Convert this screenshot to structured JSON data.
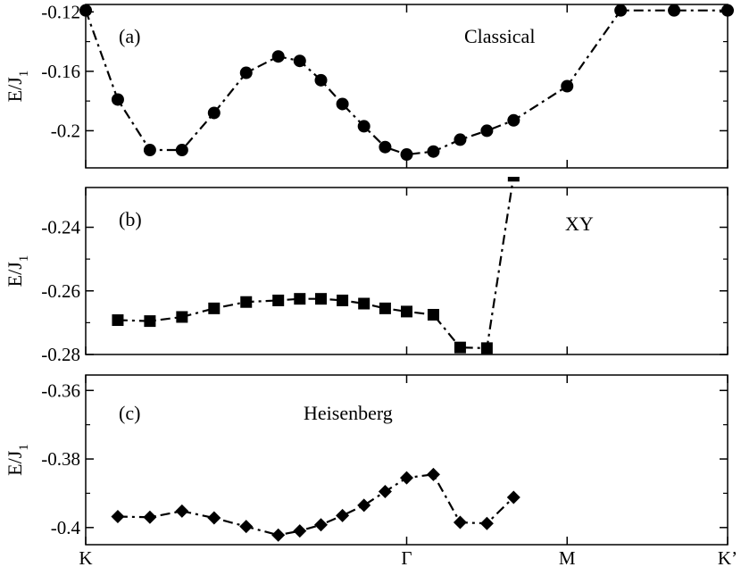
{
  "chart_data": [
    {
      "type": "line",
      "panel_label": "(a)",
      "annotation": "Classical",
      "ylabel": "E/J",
      "ylabel_sub": "1",
      "marker": "circle",
      "ylim": [
        -0.225,
        -0.115
      ],
      "yticks": [
        -0.12,
        -0.16,
        -0.2
      ],
      "ytick_labels": [
        "-0.12",
        "-0.16",
        "-0.2"
      ],
      "x": [
        0,
        0.1,
        0.2,
        0.3,
        0.4,
        0.5,
        0.6,
        0.667,
        0.733,
        0.8,
        0.867,
        0.933,
        1.0,
        1.0833,
        1.1667,
        1.25,
        1.3333,
        1.5,
        1.6667,
        1.8333,
        2.0
      ],
      "y": [
        -0.119,
        -0.179,
        -0.213,
        -0.213,
        -0.188,
        -0.161,
        -0.15,
        -0.153,
        -0.166,
        -0.182,
        -0.197,
        -0.211,
        -0.216,
        -0.214,
        -0.206,
        -0.2,
        -0.193,
        -0.17,
        -0.119,
        -0.119,
        -0.119
      ]
    },
    {
      "type": "line",
      "panel_label": "(b)",
      "annotation": "XY",
      "ylabel": "E/J",
      "ylabel_sub": "1",
      "marker": "square",
      "ylim": [
        -0.28,
        -0.2275
      ],
      "yticks": [
        -0.24,
        -0.26,
        -0.28
      ],
      "ytick_labels": [
        "-0.24",
        "-0.26",
        "-0.28"
      ],
      "x": [
        0.1,
        0.2,
        0.3,
        0.4,
        0.5,
        0.6,
        0.667,
        0.733,
        0.8,
        0.867,
        0.933,
        1.0,
        1.0833,
        1.1667,
        1.25,
        1.3333
      ],
      "y": [
        -0.2692,
        -0.2695,
        -0.2682,
        -0.2655,
        -0.2635,
        -0.263,
        -0.2625,
        -0.2625,
        -0.263,
        -0.264,
        -0.2655,
        -0.2665,
        -0.2675,
        -0.2778,
        -0.278,
        -0.2238
      ]
    },
    {
      "type": "line",
      "panel_label": "(c)",
      "annotation": "Heisenberg",
      "ylabel": "E/J",
      "ylabel_sub": "1",
      "marker": "diamond",
      "ylim": [
        -0.405,
        -0.3555
      ],
      "yticks": [
        -0.36,
        -0.38,
        -0.4
      ],
      "ytick_labels": [
        "-0.36",
        "-0.38",
        "-0.4"
      ],
      "x": [
        0.1,
        0.2,
        0.3,
        0.4,
        0.5,
        0.6,
        0.667,
        0.733,
        0.8,
        0.867,
        0.933,
        1.0,
        1.0833,
        1.1667,
        1.25,
        1.3333
      ],
      "y": [
        -0.3968,
        -0.397,
        -0.3952,
        -0.3972,
        -0.3997,
        -0.4022,
        -0.401,
        -0.3992,
        -0.3965,
        -0.3935,
        -0.3895,
        -0.3855,
        -0.3845,
        -0.3985,
        -0.3988,
        -0.3912
      ]
    }
  ],
  "x_axis": {
    "xlim": [
      0,
      2.0
    ],
    "ticks": [
      {
        "x": 0,
        "label": "K"
      },
      {
        "x": 1.0,
        "label": "Γ"
      },
      {
        "x": 1.5,
        "label": "M"
      },
      {
        "x": 2.0,
        "label": "K’"
      }
    ]
  }
}
